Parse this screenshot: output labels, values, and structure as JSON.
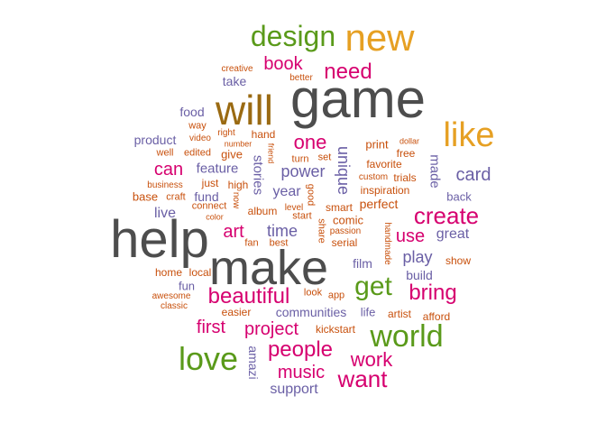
{
  "palette": {
    "gray": "#4d4d4d",
    "gold": "#e6a023",
    "green": "#5a9a1a",
    "magenta": "#d6006f",
    "purple": "#6a5fa5",
    "orange": "#c8500c",
    "brown": "#9a6a12"
  },
  "words": [
    {
      "text": "game",
      "color": "gray"
    },
    {
      "text": "help",
      "color": "gray"
    },
    {
      "text": "make",
      "color": "gray"
    },
    {
      "text": "will",
      "color": "brown"
    },
    {
      "text": "new",
      "color": "gold"
    },
    {
      "text": "like",
      "color": "gold"
    },
    {
      "text": "design",
      "color": "green"
    },
    {
      "text": "world",
      "color": "green"
    },
    {
      "text": "love",
      "color": "green"
    },
    {
      "text": "get",
      "color": "green"
    },
    {
      "text": "create",
      "color": "magenta"
    },
    {
      "text": "beautiful",
      "color": "magenta"
    },
    {
      "text": "people",
      "color": "magenta"
    },
    {
      "text": "want",
      "color": "magenta"
    },
    {
      "text": "work",
      "color": "magenta"
    },
    {
      "text": "bring",
      "color": "magenta"
    },
    {
      "text": "need",
      "color": "magenta"
    },
    {
      "text": "book",
      "color": "magenta"
    },
    {
      "text": "one",
      "color": "magenta"
    },
    {
      "text": "can",
      "color": "magenta"
    },
    {
      "text": "first",
      "color": "magenta"
    },
    {
      "text": "project",
      "color": "magenta"
    },
    {
      "text": "music",
      "color": "magenta"
    },
    {
      "text": "art",
      "color": "magenta"
    },
    {
      "text": "use",
      "color": "magenta"
    },
    {
      "text": "card",
      "color": "purple"
    },
    {
      "text": "play",
      "color": "purple"
    },
    {
      "text": "power",
      "color": "purple"
    },
    {
      "text": "time",
      "color": "purple"
    },
    {
      "text": "great",
      "color": "purple"
    },
    {
      "text": "year",
      "color": "purple"
    },
    {
      "text": "feature",
      "color": "purple"
    },
    {
      "text": "support",
      "color": "purple"
    },
    {
      "text": "communities",
      "color": "purple"
    },
    {
      "text": "product",
      "color": "purple"
    },
    {
      "text": "take",
      "color": "purple"
    },
    {
      "text": "food",
      "color": "purple"
    },
    {
      "text": "live",
      "color": "purple"
    },
    {
      "text": "film",
      "color": "purple"
    },
    {
      "text": "build",
      "color": "purple"
    },
    {
      "text": "back",
      "color": "purple"
    },
    {
      "text": "fun",
      "color": "purple"
    },
    {
      "text": "life",
      "color": "purple"
    },
    {
      "text": "fund",
      "color": "purple"
    },
    {
      "text": "unique",
      "color": "purple"
    },
    {
      "text": "stories",
      "color": "purple"
    },
    {
      "text": "made",
      "color": "purple"
    },
    {
      "text": "amazi",
      "color": "purple"
    },
    {
      "text": "creative",
      "color": "orange"
    },
    {
      "text": "better",
      "color": "orange"
    },
    {
      "text": "way",
      "color": "orange"
    },
    {
      "text": "right",
      "color": "orange"
    },
    {
      "text": "video",
      "color": "orange"
    },
    {
      "text": "hand",
      "color": "orange"
    },
    {
      "text": "number",
      "color": "orange"
    },
    {
      "text": "well",
      "color": "orange"
    },
    {
      "text": "edited",
      "color": "orange"
    },
    {
      "text": "give",
      "color": "orange"
    },
    {
      "text": "friend",
      "color": "orange"
    },
    {
      "text": "turn",
      "color": "orange"
    },
    {
      "text": "set",
      "color": "orange"
    },
    {
      "text": "print",
      "color": "orange"
    },
    {
      "text": "dollar",
      "color": "orange"
    },
    {
      "text": "free",
      "color": "orange"
    },
    {
      "text": "favorite",
      "color": "orange"
    },
    {
      "text": "business",
      "color": "orange"
    },
    {
      "text": "just",
      "color": "orange"
    },
    {
      "text": "high",
      "color": "orange"
    },
    {
      "text": "custom",
      "color": "orange"
    },
    {
      "text": "trials",
      "color": "orange"
    },
    {
      "text": "base",
      "color": "orange"
    },
    {
      "text": "craft",
      "color": "orange"
    },
    {
      "text": "inspiration",
      "color": "orange"
    },
    {
      "text": "connect",
      "color": "orange"
    },
    {
      "text": "smart",
      "color": "orange"
    },
    {
      "text": "perfect",
      "color": "orange"
    },
    {
      "text": "color",
      "color": "orange"
    },
    {
      "text": "now",
      "color": "orange"
    },
    {
      "text": "level",
      "color": "orange"
    },
    {
      "text": "start",
      "color": "orange"
    },
    {
      "text": "comic",
      "color": "orange"
    },
    {
      "text": "good",
      "color": "orange"
    },
    {
      "text": "album",
      "color": "orange"
    },
    {
      "text": "share",
      "color": "orange"
    },
    {
      "text": "passion",
      "color": "orange"
    },
    {
      "text": "serial",
      "color": "orange"
    },
    {
      "text": "handmade",
      "color": "orange"
    },
    {
      "text": "fan",
      "color": "orange"
    },
    {
      "text": "best",
      "color": "orange"
    },
    {
      "text": "show",
      "color": "orange"
    },
    {
      "text": "home",
      "color": "orange"
    },
    {
      "text": "local",
      "color": "orange"
    },
    {
      "text": "awesome",
      "color": "orange"
    },
    {
      "text": "classic",
      "color": "orange"
    },
    {
      "text": "look",
      "color": "orange"
    },
    {
      "text": "app",
      "color": "orange"
    },
    {
      "text": "easier",
      "color": "orange"
    },
    {
      "text": "artist",
      "color": "orange"
    },
    {
      "text": "afford",
      "color": "orange"
    },
    {
      "text": "kickstart",
      "color": "orange"
    }
  ]
}
